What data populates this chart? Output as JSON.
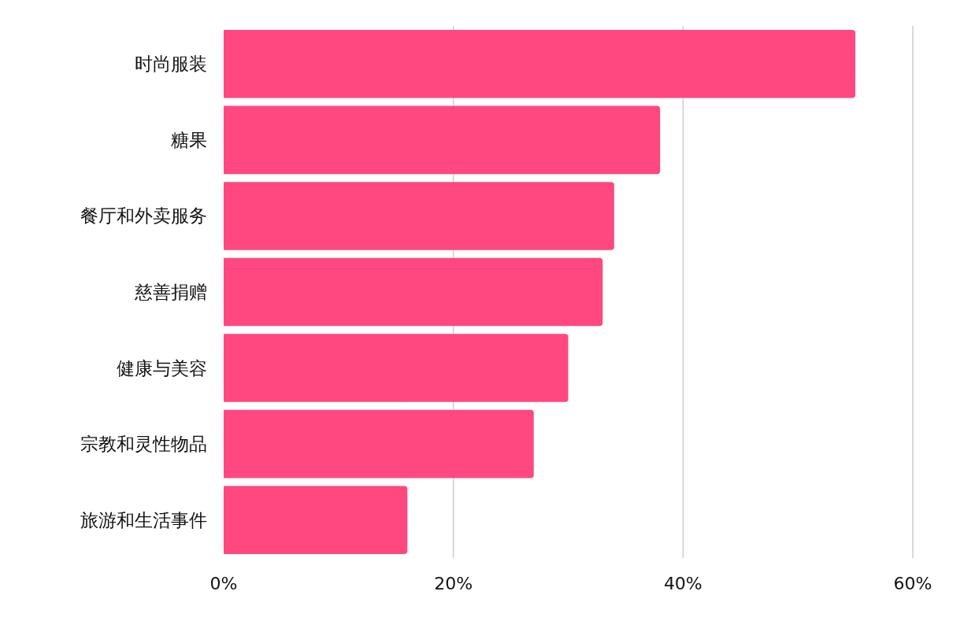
{
  "chart_data": {
    "type": "bar",
    "orientation": "horizontal",
    "categories": [
      "时尚服装",
      "糖果",
      "餐厅和外卖服务",
      "慈善捐赠",
      "健康与美容",
      "宗教和灵性物品",
      "旅游和生活事件"
    ],
    "values": [
      55,
      38,
      34,
      33,
      30,
      27,
      16
    ],
    "color": "#ff4880",
    "xlim": [
      0,
      60
    ],
    "xticks": [
      {
        "value": 0,
        "label": "0%"
      },
      {
        "value": 20,
        "label": "20%"
      },
      {
        "value": 40,
        "label": "40%"
      },
      {
        "value": 60,
        "label": "60%"
      }
    ],
    "grid": "x"
  }
}
